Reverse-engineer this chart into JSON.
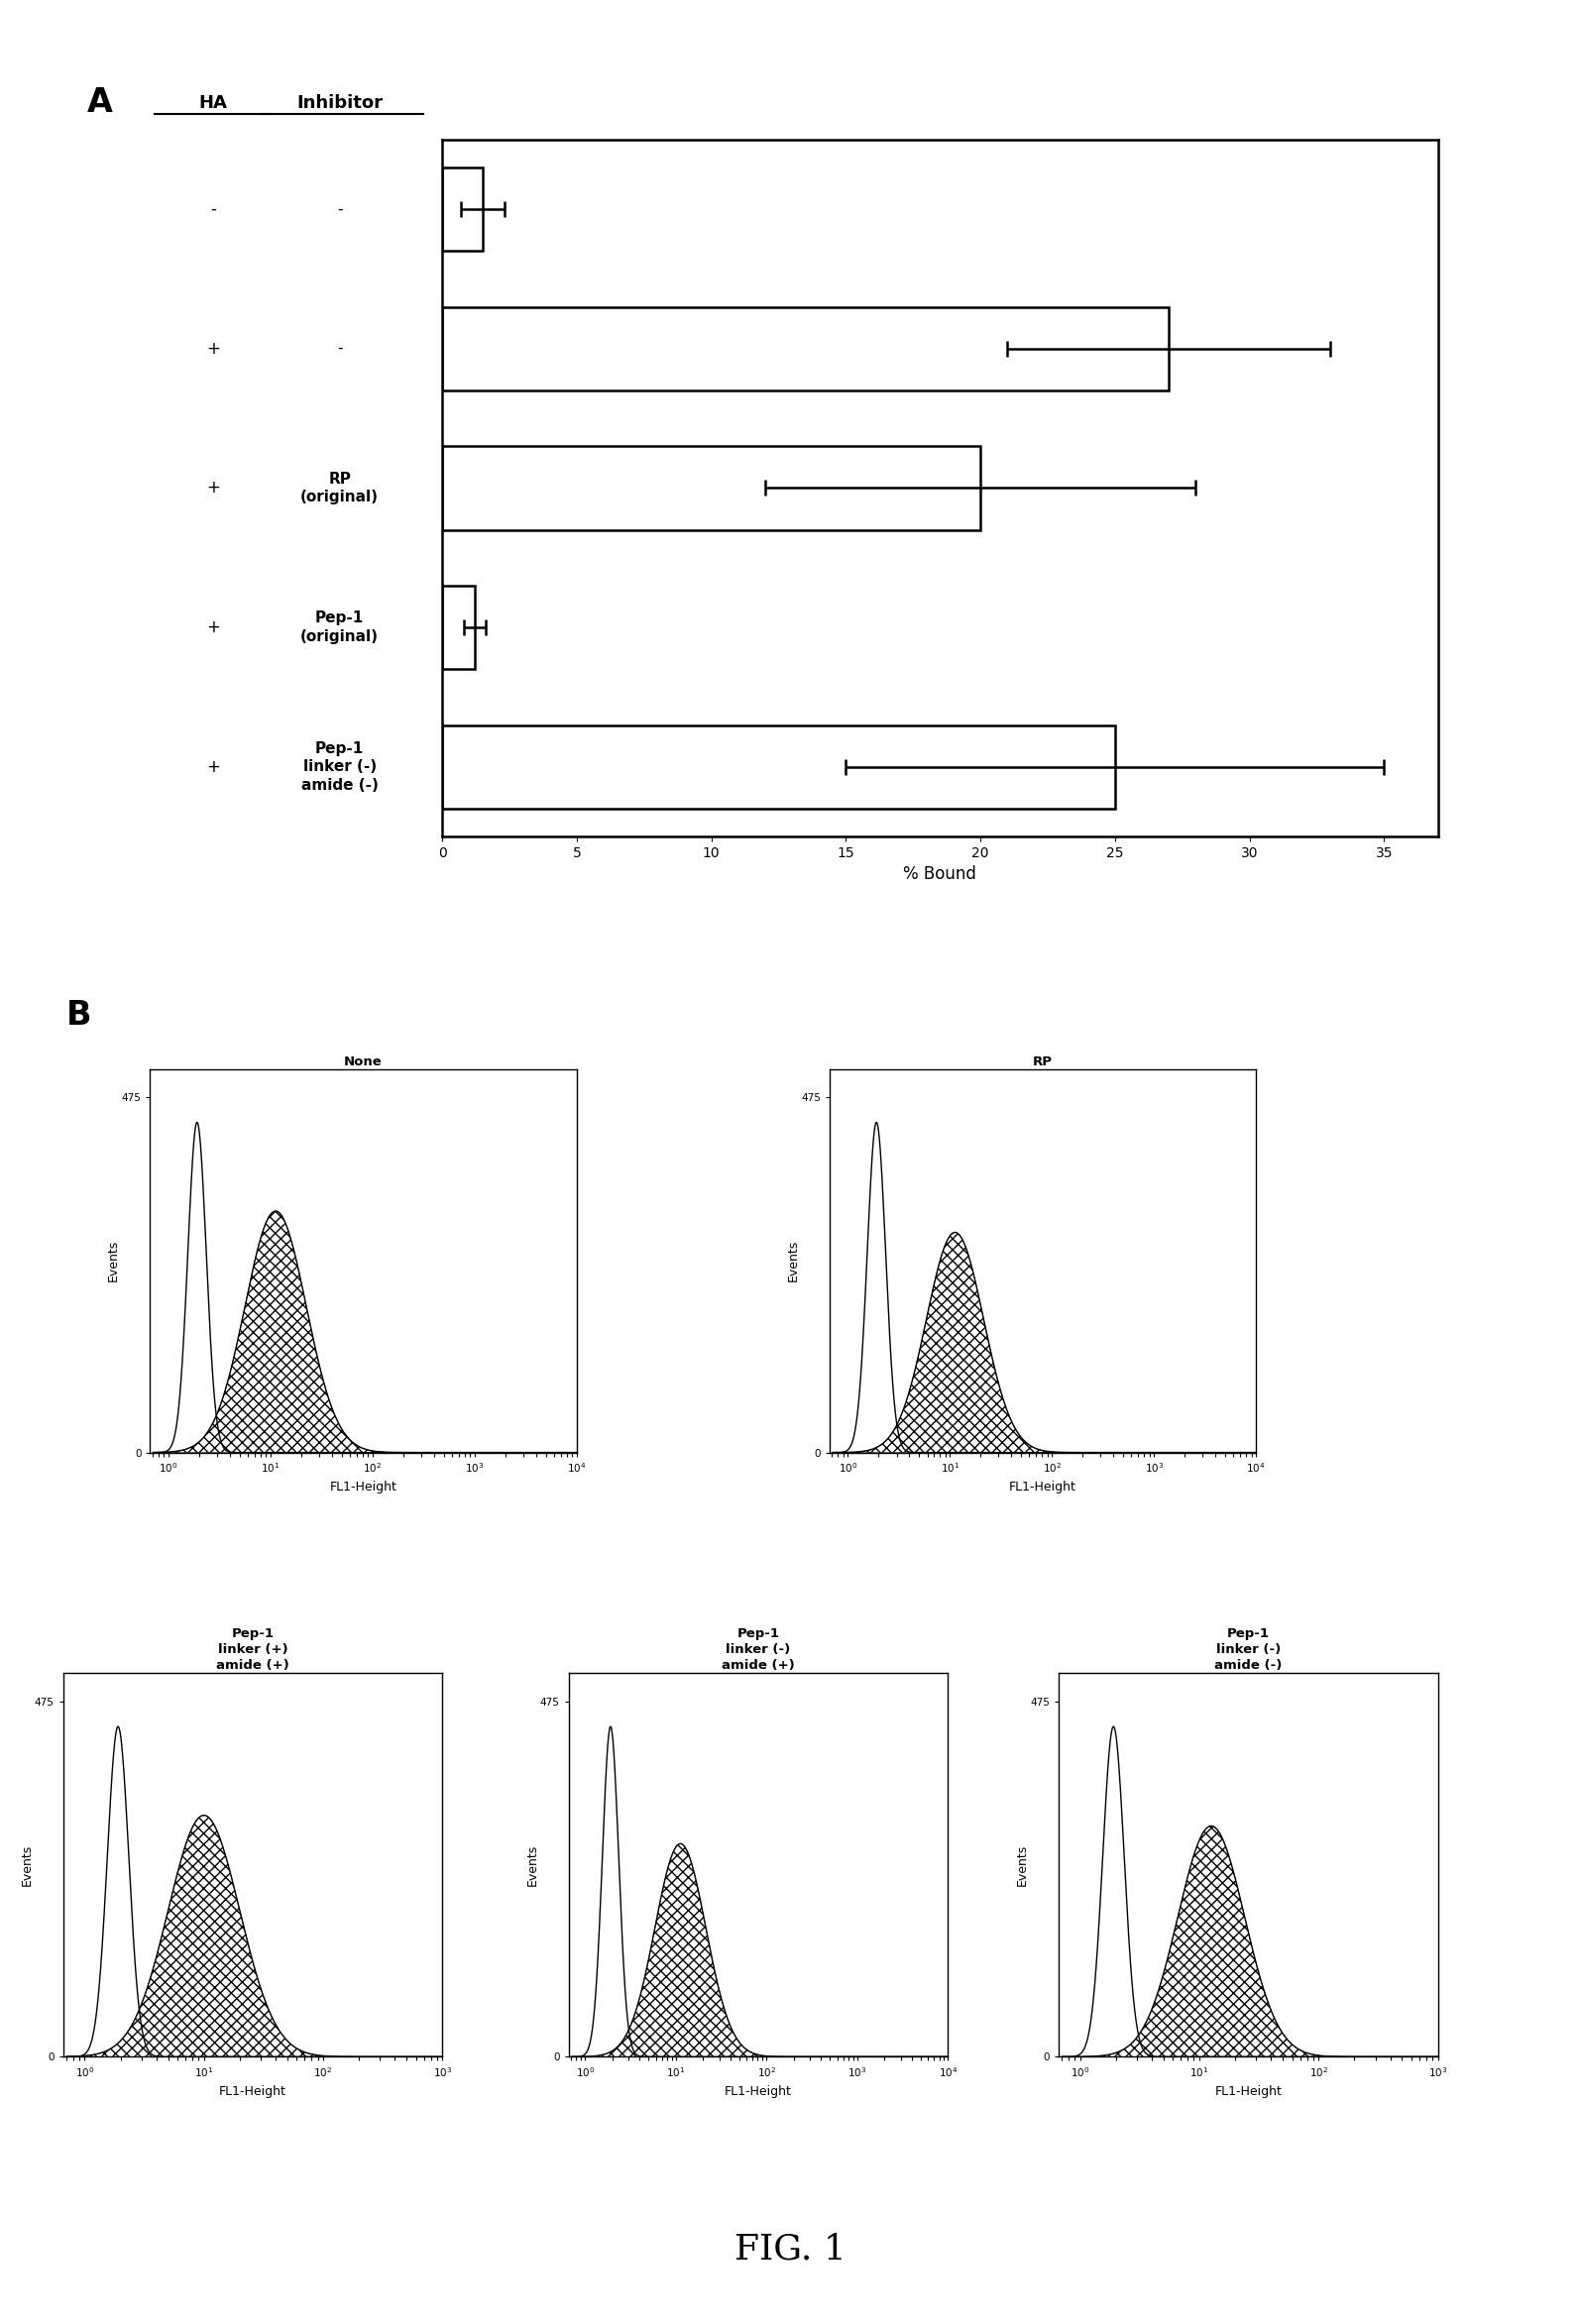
{
  "panel_A": {
    "bars": [
      {
        "label_ha": "-",
        "label_inh": "-",
        "value": 1.5,
        "error": 0.8
      },
      {
        "label_ha": "+",
        "label_inh": "-",
        "value": 27.0,
        "error": 6.0
      },
      {
        "label_ha": "+",
        "label_inh": "RP\n(original)",
        "value": 20.0,
        "error": 8.0
      },
      {
        "label_ha": "+",
        "label_inh": "Pep-1\n(original)",
        "value": 1.2,
        "error": 0.4
      },
      {
        "label_ha": "+",
        "label_inh": "Pep-1\nlinker (-)\namide (-)",
        "value": 25.0,
        "error": 10.0
      }
    ],
    "xlim": [
      0,
      37
    ],
    "xticks": [
      0,
      5,
      10,
      15,
      20,
      25,
      30,
      35
    ],
    "xlabel": "% Bound",
    "ha_header": "HA",
    "inh_header": "Inhibitor",
    "panel_label": "A"
  },
  "panel_B": {
    "panel_label": "B",
    "plots": [
      {
        "title": "None",
        "row": 0,
        "col": 0,
        "x_max": 4,
        "unstained_mu": 0.28,
        "unstained_sigma": 0.09,
        "unstained_amp": 0.93,
        "stained_mu": 1.05,
        "stained_sigma": 0.3,
        "stained_amp": 0.68
      },
      {
        "title": "RP",
        "row": 0,
        "col": 1,
        "x_max": 4,
        "unstained_mu": 0.28,
        "unstained_sigma": 0.09,
        "unstained_amp": 0.93,
        "stained_mu": 1.05,
        "stained_sigma": 0.28,
        "stained_amp": 0.62
      },
      {
        "title": "Pep-1\nlinker (+)\namide (+)",
        "row": 1,
        "col": 0,
        "x_max": 3,
        "unstained_mu": 0.28,
        "unstained_sigma": 0.09,
        "unstained_amp": 0.93,
        "stained_mu": 1.0,
        "stained_sigma": 0.3,
        "stained_amp": 0.68
      },
      {
        "title": "Pep-1\nlinker (-)\namide (+)",
        "row": 1,
        "col": 1,
        "x_max": 4,
        "unstained_mu": 0.28,
        "unstained_sigma": 0.09,
        "unstained_amp": 0.93,
        "stained_mu": 1.05,
        "stained_sigma": 0.28,
        "stained_amp": 0.6
      },
      {
        "title": "Pep-1\nlinker (-)\namide (-)",
        "row": 1,
        "col": 2,
        "x_max": 3,
        "unstained_mu": 0.28,
        "unstained_sigma": 0.09,
        "unstained_amp": 0.93,
        "stained_mu": 1.1,
        "stained_sigma": 0.28,
        "stained_amp": 0.65
      }
    ],
    "y_max": 475,
    "xlabel": "FL1-Height",
    "ylabel": "Events"
  },
  "fig_label": "FIG. 1",
  "bg_color": "#ffffff",
  "bar_color": "#ffffff",
  "bar_edge_color": "#000000"
}
